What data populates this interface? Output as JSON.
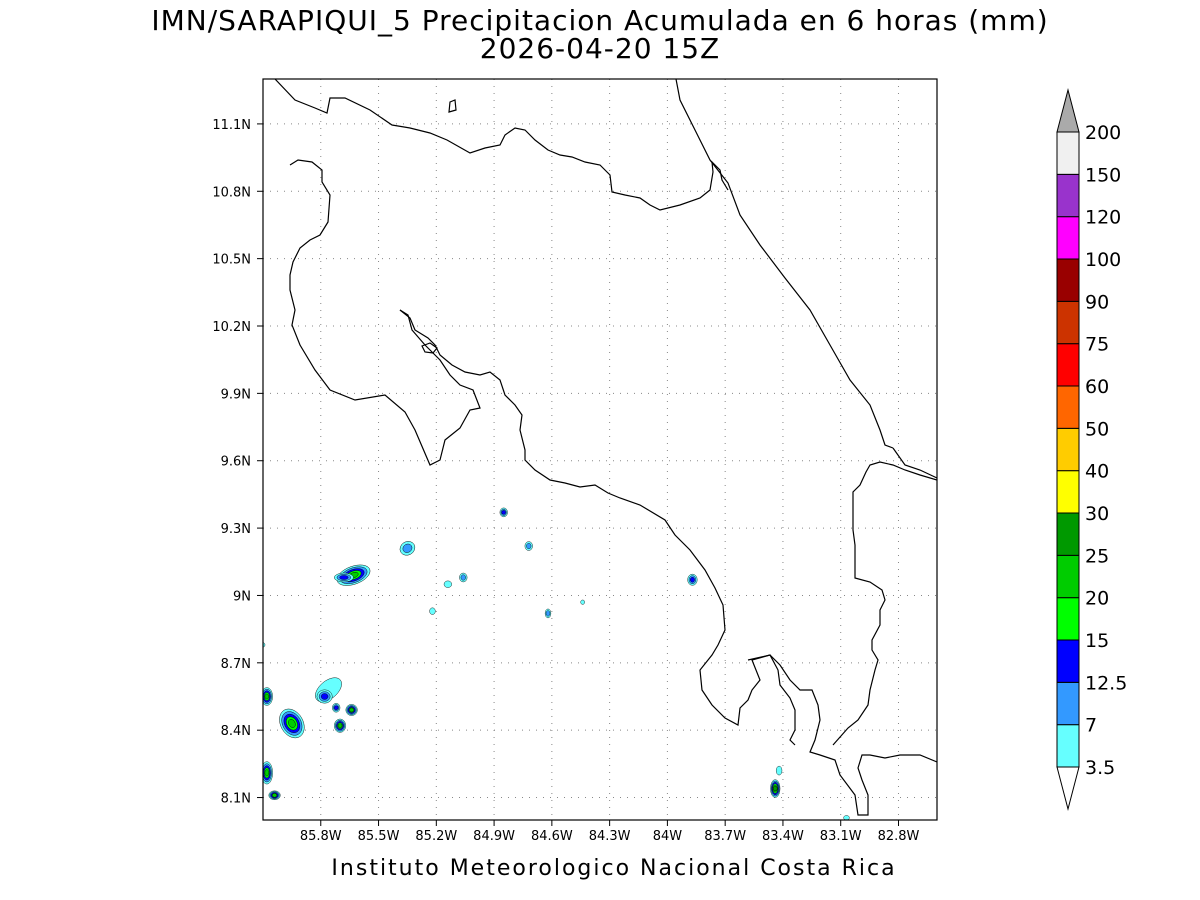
{
  "title": {
    "line1": "IMN/SARAPIQUI_5 Precipitacion Acumulada en 6 horas (mm)",
    "line2": "2026-04-20 15Z"
  },
  "credit": "Instituto Meteorologico Nacional Costa Rica",
  "map": {
    "lon_range": [
      -86.1,
      -82.6
    ],
    "lat_range": [
      8.0,
      11.3
    ],
    "grid": true,
    "y_ticks": [
      {
        "value": 11.1,
        "label": "11.1N"
      },
      {
        "value": 10.8,
        "label": "10.8N"
      },
      {
        "value": 10.5,
        "label": "10.5N"
      },
      {
        "value": 10.2,
        "label": "10.2N"
      },
      {
        "value": 9.9,
        "label": "9.9N"
      },
      {
        "value": 9.6,
        "label": "9.6N"
      },
      {
        "value": 9.3,
        "label": "9.3N"
      },
      {
        "value": 9.0,
        "label": "9N"
      },
      {
        "value": 8.7,
        "label": "8.7N"
      },
      {
        "value": 8.4,
        "label": "8.4N"
      },
      {
        "value": 8.1,
        "label": "8.1N"
      }
    ],
    "x_ticks": [
      {
        "value": -85.8,
        "label": "85.8W"
      },
      {
        "value": -85.5,
        "label": "85.5W"
      },
      {
        "value": -85.2,
        "label": "85.2W"
      },
      {
        "value": -84.9,
        "label": "84.9W"
      },
      {
        "value": -84.6,
        "label": "84.6W"
      },
      {
        "value": -84.3,
        "label": "84.3W"
      },
      {
        "value": -84.0,
        "label": "84W"
      },
      {
        "value": -83.7,
        "label": "83.7W"
      },
      {
        "value": -83.4,
        "label": "83.4W"
      },
      {
        "value": -83.1,
        "label": "83.1W"
      },
      {
        "value": -82.8,
        "label": "82.8W"
      }
    ]
  },
  "colorbar": {
    "levels": [
      {
        "label": "3.5",
        "color": "#66ffff"
      },
      {
        "label": "7",
        "color": "#3399ff"
      },
      {
        "label": "12.5",
        "color": "#0000ff"
      },
      {
        "label": "15",
        "color": "#00ff00"
      },
      {
        "label": "20",
        "color": "#00cc00"
      },
      {
        "label": "25",
        "color": "#009900"
      },
      {
        "label": "30",
        "color": "#ffff00"
      },
      {
        "label": "40",
        "color": "#ffcc00"
      },
      {
        "label": "50",
        "color": "#ff6600"
      },
      {
        "label": "60",
        "color": "#ff0000"
      },
      {
        "label": "75",
        "color": "#cc3300"
      },
      {
        "label": "90",
        "color": "#990000"
      },
      {
        "label": "100",
        "color": "#ff00ff"
      },
      {
        "label": "120",
        "color": "#9933cc"
      },
      {
        "label": "150",
        "color": "#f0f0f0"
      },
      {
        "label": "200",
        "color": ""
      }
    ],
    "colors": [
      "#66ffff",
      "#3399ff",
      "#0000ff",
      "#00ff00",
      "#00cc00",
      "#009900",
      "#ffff00",
      "#ffcc00",
      "#ff6600",
      "#ff0000",
      "#cc3300",
      "#990000",
      "#ff00ff",
      "#9933cc",
      "#f0f0f0"
    ],
    "over_color": "#aaaaaa",
    "under_color": "#ffffff"
  },
  "precip_cells": [
    {
      "lon": -85.63,
      "lat": 9.09,
      "rx": 0.09,
      "ry": 0.04,
      "rot": -20,
      "level": 4
    },
    {
      "lon": -85.68,
      "lat": 9.08,
      "rx": 0.05,
      "ry": 0.02,
      "rot": 0,
      "level": 2
    },
    {
      "lon": -85.35,
      "lat": 9.21,
      "rx": 0.04,
      "ry": 0.03,
      "rot": -30,
      "level": 1
    },
    {
      "lon": -84.85,
      "lat": 9.37,
      "rx": 0.02,
      "ry": 0.02,
      "rot": 0,
      "level": 2
    },
    {
      "lon": -84.72,
      "lat": 9.22,
      "rx": 0.02,
      "ry": 0.02,
      "rot": 0,
      "level": 1
    },
    {
      "lon": -85.06,
      "lat": 9.08,
      "rx": 0.02,
      "ry": 0.02,
      "rot": 0,
      "level": 1
    },
    {
      "lon": -85.14,
      "lat": 9.05,
      "rx": 0.02,
      "ry": 0.015,
      "rot": 0,
      "level": 0
    },
    {
      "lon": -85.22,
      "lat": 8.93,
      "rx": 0.015,
      "ry": 0.015,
      "rot": 0,
      "level": 0
    },
    {
      "lon": -84.62,
      "lat": 8.92,
      "rx": 0.015,
      "ry": 0.02,
      "rot": 0,
      "level": 1
    },
    {
      "lon": -84.44,
      "lat": 8.97,
      "rx": 0.01,
      "ry": 0.01,
      "rot": 0,
      "level": 0
    },
    {
      "lon": -83.87,
      "lat": 9.07,
      "rx": 0.025,
      "ry": 0.025,
      "rot": 0,
      "level": 2
    },
    {
      "lon": -85.76,
      "lat": 8.58,
      "rx": 0.08,
      "ry": 0.04,
      "rot": -40,
      "level": 0
    },
    {
      "lon": -85.78,
      "lat": 8.55,
      "rx": 0.04,
      "ry": 0.03,
      "rot": 0,
      "level": 2
    },
    {
      "lon": -85.72,
      "lat": 8.5,
      "rx": 0.02,
      "ry": 0.02,
      "rot": 0,
      "level": 2
    },
    {
      "lon": -85.95,
      "lat": 8.43,
      "rx": 0.08,
      "ry": 0.05,
      "rot": 60,
      "level": 4
    },
    {
      "lon": -86.08,
      "lat": 8.55,
      "rx": 0.03,
      "ry": 0.04,
      "rot": 0,
      "level": 4
    },
    {
      "lon": -85.64,
      "lat": 8.49,
      "rx": 0.03,
      "ry": 0.025,
      "rot": 0,
      "level": 4
    },
    {
      "lon": -85.7,
      "lat": 8.42,
      "rx": 0.03,
      "ry": 0.03,
      "rot": 0,
      "level": 4
    },
    {
      "lon": -86.08,
      "lat": 8.21,
      "rx": 0.03,
      "ry": 0.05,
      "rot": 0,
      "level": 4
    },
    {
      "lon": -86.04,
      "lat": 8.11,
      "rx": 0.03,
      "ry": 0.02,
      "rot": 0,
      "level": 4
    },
    {
      "lon": -83.44,
      "lat": 8.14,
      "rx": 0.025,
      "ry": 0.04,
      "rot": 0,
      "level": 5
    },
    {
      "lon": -83.42,
      "lat": 8.22,
      "rx": 0.015,
      "ry": 0.02,
      "rot": 0,
      "level": 0
    },
    {
      "lon": -83.07,
      "lat": 8.01,
      "rx": 0.015,
      "ry": 0.01,
      "rot": 0,
      "level": 0
    },
    {
      "lon": -86.1,
      "lat": 8.78,
      "rx": 0.01,
      "ry": 0.01,
      "rot": 0,
      "level": 0
    }
  ]
}
